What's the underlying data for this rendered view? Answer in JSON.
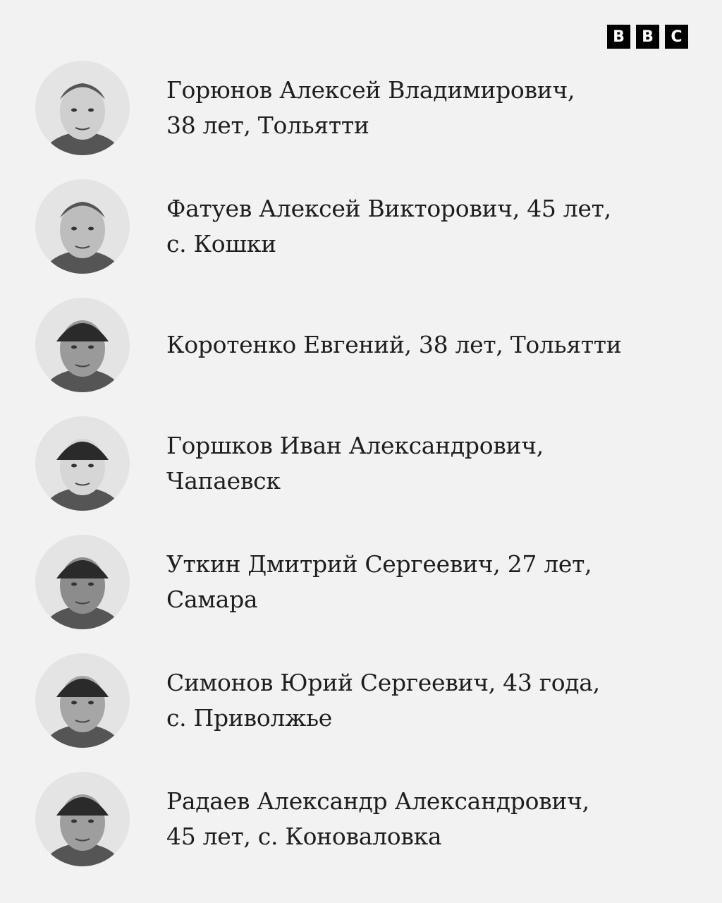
{
  "logo": {
    "letters": [
      "B",
      "B",
      "C"
    ]
  },
  "people": [
    {
      "line1": "Горюнов Алексей Владимирович,",
      "line2": "38 лет, Тольятти",
      "tone": "#cfcfcf",
      "hat": false
    },
    {
      "line1": "Фатуев Алексей Викторович, 45 лет,",
      "line2": "с. Кошки",
      "tone": "#bdbdbd",
      "hat": false
    },
    {
      "line1": "Коротенко Евгений, 38 лет, Тольятти",
      "line2": "",
      "tone": "#9a9a9a",
      "hat": true
    },
    {
      "line1": "Горшков Иван Александрович,",
      "line2": "Чапаевск",
      "tone": "#d6d6d6",
      "hat": true
    },
    {
      "line1": "Уткин Дмитрий Сергеевич, 27 лет,",
      "line2": "Самара",
      "tone": "#8c8c8c",
      "hat": true
    },
    {
      "line1": "Симонов Юрий Сергеевич, 43 года,",
      "line2": "с. Приволжье",
      "tone": "#a6a6a6",
      "hat": true
    },
    {
      "line1": "Радаев Александр Александрович,",
      "line2": "45 лет, с. Коноваловка",
      "tone": "#9e9e9e",
      "hat": true
    }
  ]
}
